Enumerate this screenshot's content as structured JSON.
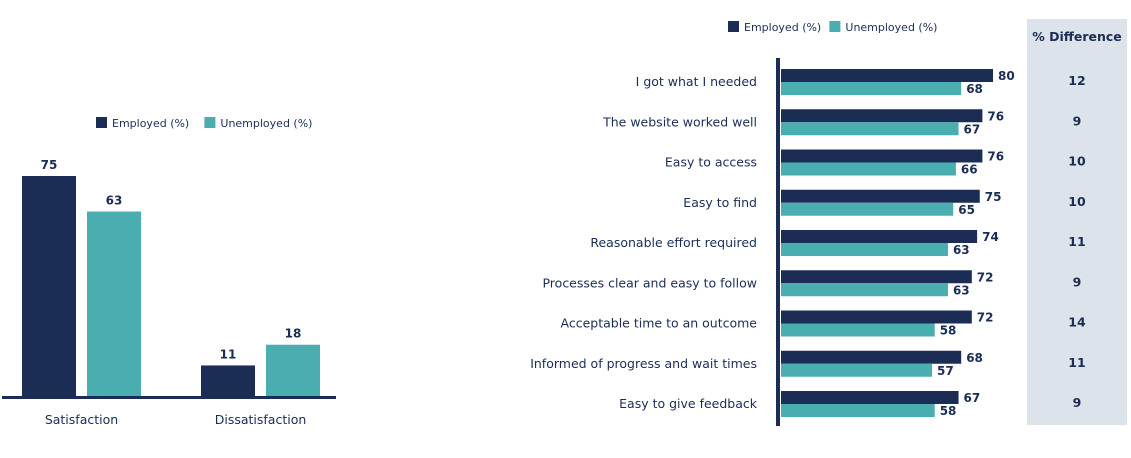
{
  "colors": {
    "employed": "#1b2d55",
    "unemployed": "#4aaeb0",
    "axis": "#1b2d55",
    "diff_panel": "#dde3ea"
  },
  "chart_data": [
    {
      "type": "bar",
      "legend_position": "top",
      "categories": [
        "Satisfaction",
        "Dissatisfaction"
      ],
      "series": [
        {
          "name": "Employed (%)",
          "values": [
            75,
            11
          ]
        },
        {
          "name": "Unemployed (%)",
          "values": [
            63,
            18
          ]
        }
      ],
      "ylim": [
        0,
        80
      ],
      "grid": false
    },
    {
      "type": "bar",
      "orientation": "horizontal",
      "legend_position": "top",
      "categories": [
        "I got what I needed",
        "The website worked well",
        "Easy to access",
        "Easy to find",
        "Reasonable effort required",
        "Processes clear and easy to follow",
        "Acceptable time to an outcome",
        "Informed of progress and wait times",
        "Easy to give feedback"
      ],
      "series": [
        {
          "name": "Employed (%)",
          "values": [
            80,
            76,
            76,
            75,
            74,
            72,
            72,
            68,
            67
          ]
        },
        {
          "name": "Unemployed (%)",
          "values": [
            68,
            67,
            66,
            65,
            63,
            63,
            58,
            57,
            58
          ]
        }
      ],
      "xlim": [
        0,
        100
      ],
      "grid": false,
      "difference_column": {
        "header": "% Difference",
        "values": [
          12,
          9,
          10,
          10,
          11,
          9,
          14,
          11,
          9
        ]
      }
    }
  ]
}
